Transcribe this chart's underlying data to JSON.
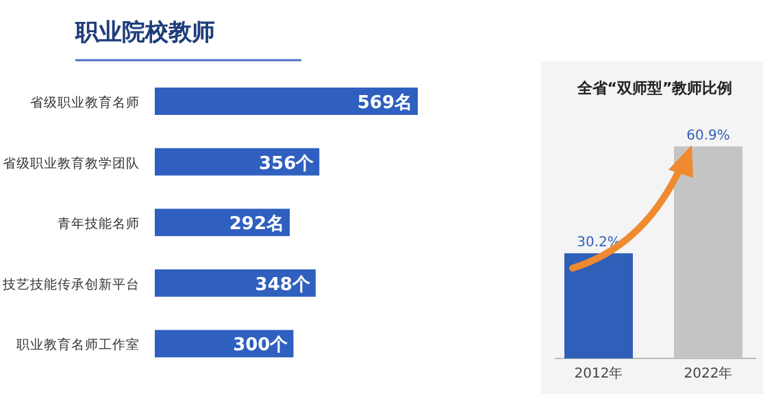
{
  "chart_data": [
    {
      "type": "bar",
      "title": "职业院校教师",
      "orientation": "horizontal",
      "categories": [
        "省级职业教育名师",
        "省级职业教育教学团队",
        "青年技能名师",
        "技艺技能传承创新平台",
        "职业教育名师工作室"
      ],
      "values": [
        569,
        356,
        292,
        348,
        300
      ],
      "value_labels": [
        "569名",
        "356个",
        "292名",
        "348个",
        "300个"
      ],
      "color": "#2f5fbf"
    },
    {
      "type": "bar",
      "title": "全省“双师型”教师比例",
      "categories": [
        "2012年",
        "2022年"
      ],
      "values": [
        30.2,
        60.9
      ],
      "value_labels": [
        "30.2%",
        "60.9%"
      ],
      "colors": [
        "#2f5fb8",
        "#c4c4c4"
      ]
    }
  ]
}
